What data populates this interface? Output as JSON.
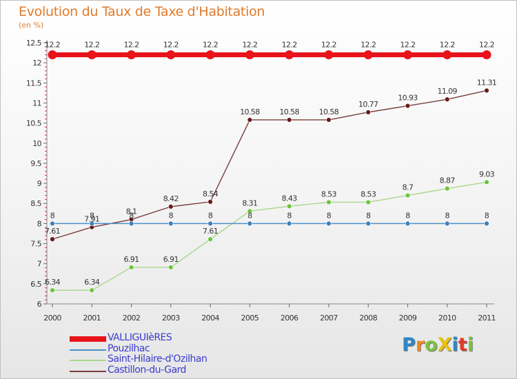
{
  "title": "Evolution du Taux de Taxe d'Habitation",
  "unit": "(en %)",
  "brand": {
    "text": "ProXiti",
    "letters": [
      {
        "ch": "P",
        "color": "#2f86c8"
      },
      {
        "ch": "r",
        "color": "#f08a1c"
      },
      {
        "ch": "o",
        "color": "#7cc242"
      },
      {
        "ch": "X",
        "color": "#e8c20f"
      },
      {
        "ch": "i",
        "color": "#2f86c8"
      },
      {
        "ch": "t",
        "color": "#e03c2e"
      },
      {
        "ch": "i",
        "color": "#7cc242"
      }
    ]
  },
  "chart_data": {
    "type": "line",
    "title": "Evolution du Taux de Taxe d'Habitation",
    "ylabel": "(en %)",
    "xlabel": "",
    "x": [
      "2000",
      "2001",
      "2002",
      "2003",
      "2004",
      "2005",
      "2006",
      "2007",
      "2008",
      "2009",
      "2010",
      "2011"
    ],
    "ylim": [
      6,
      12.5
    ],
    "yticks": [
      "6",
      "6.5",
      "7",
      "7.5",
      "8",
      "8.5",
      "9",
      "9.5",
      "10",
      "10.5",
      "11",
      "11.5",
      "12",
      "12.5"
    ],
    "grid": false,
    "legend": "bottom-left",
    "series": [
      {
        "name": "VALLIGUIèRES",
        "color": "#e8131b",
        "emphasis": true,
        "values": [
          12.2,
          12.2,
          12.2,
          12.2,
          12.2,
          12.2,
          12.2,
          12.2,
          12.2,
          12.2,
          12.2,
          12.2
        ],
        "labels": [
          "12.2",
          "12.2",
          "12.2",
          "12.2",
          "12.2",
          "12.2",
          "12.2",
          "12.2",
          "12.2",
          "12.2",
          "12.2",
          "12.2"
        ]
      },
      {
        "name": "Pouzilhac",
        "color": "#4a8fc9",
        "marker": "#3e7fba",
        "values": [
          8,
          8,
          8,
          8,
          8,
          8,
          8,
          8,
          8,
          8,
          8,
          8
        ],
        "labels": [
          "8",
          "8",
          "8",
          "8",
          "8",
          "8",
          "8",
          "8",
          "8",
          "8",
          "8",
          "8"
        ]
      },
      {
        "name": "Saint-Hilaire-d'Ozilhan",
        "color": "#a8d88a",
        "marker": "#6cc43c",
        "values": [
          6.34,
          6.34,
          6.91,
          6.91,
          7.61,
          8.31,
          8.43,
          8.53,
          8.53,
          8.7,
          8.87,
          9.03
        ],
        "labels": [
          "6.34",
          "6.34",
          "6.91",
          "6.91",
          "7.61",
          "8.31",
          "8.43",
          "8.53",
          "8.53",
          "8.7",
          "8.87",
          "9.03"
        ]
      },
      {
        "name": "Castillon-du-Gard",
        "color": "#7a3b3b",
        "marker": "#6a1a1a",
        "values": [
          7.61,
          7.91,
          8.1,
          8.42,
          8.54,
          10.58,
          10.58,
          10.58,
          10.77,
          10.93,
          11.09,
          11.31
        ],
        "labels": [
          "7.61",
          "7.91",
          "8.1",
          "8.42",
          "8.54",
          "10.58",
          "10.58",
          "10.58",
          "10.77",
          "10.93",
          "11.09",
          "11.31"
        ]
      }
    ]
  }
}
